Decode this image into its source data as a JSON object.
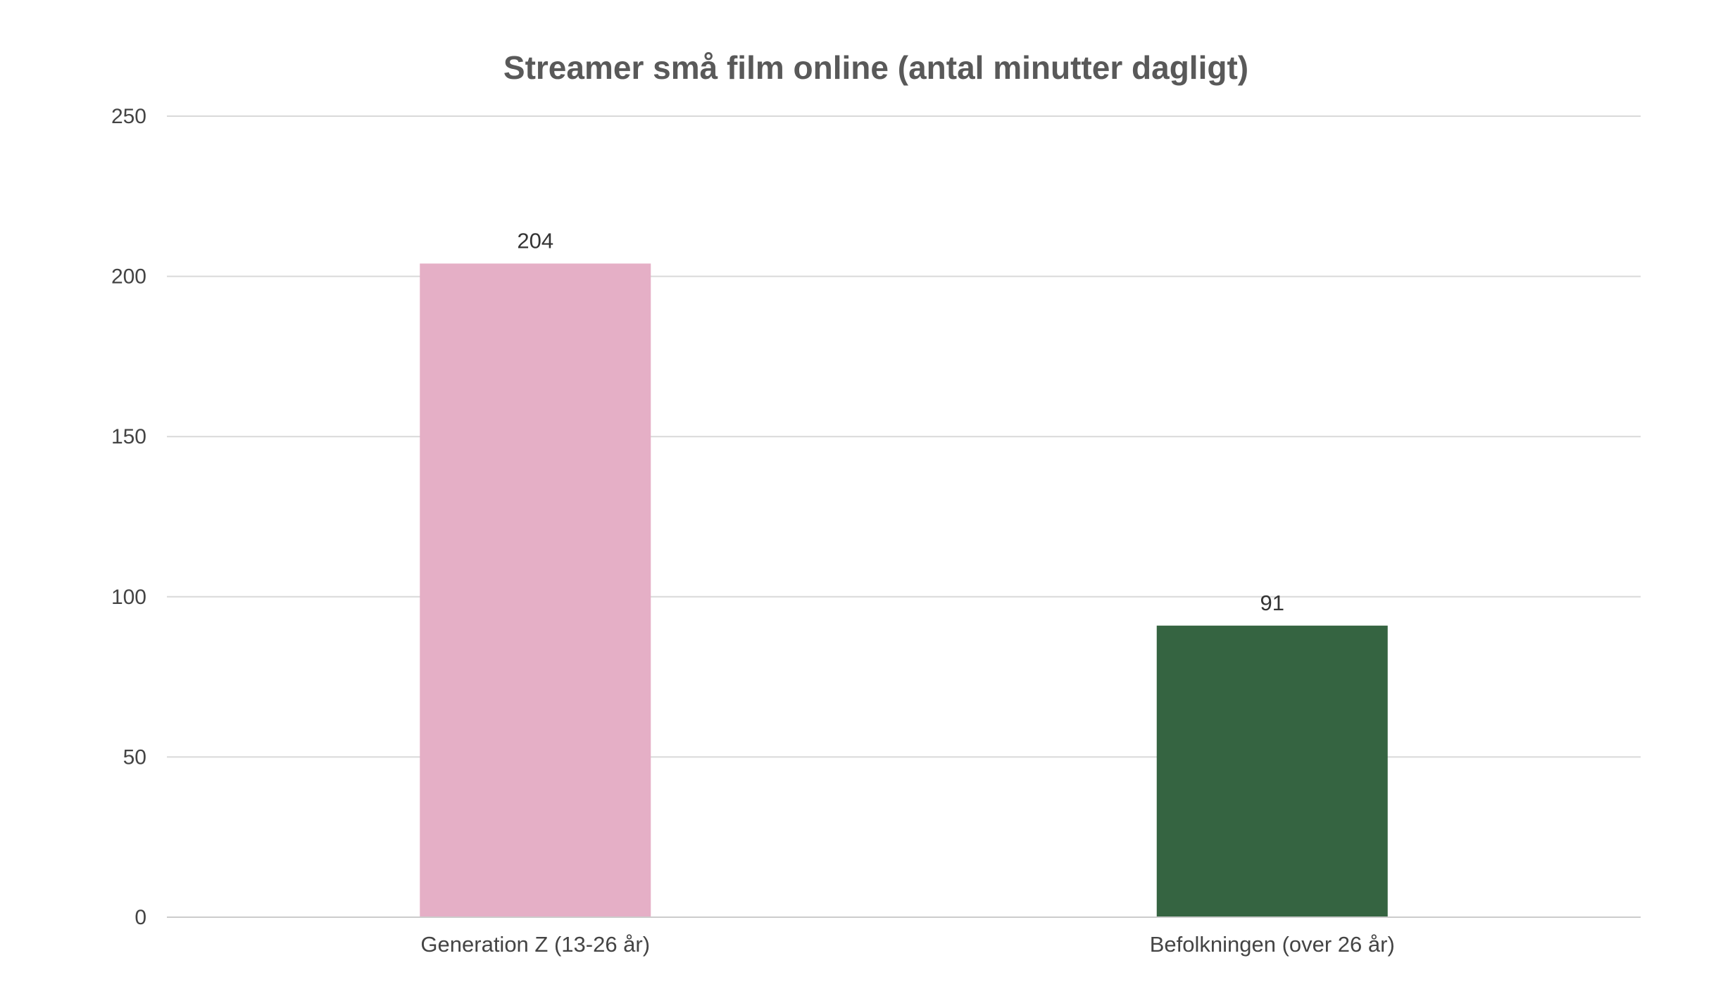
{
  "chart_data": {
    "type": "bar",
    "title": "Streamer små film online (antal minutter dagligt)",
    "xlabel": "",
    "ylabel": "",
    "categories": [
      "Generation Z (13-26 år)",
      "Befolkningen (over 26 år)"
    ],
    "values": [
      204,
      91
    ],
    "data_labels": [
      "204",
      "91"
    ],
    "colors": [
      "#e5afc6",
      "#356441"
    ],
    "ylim": [
      0,
      250
    ],
    "yticks": [
      0,
      50,
      100,
      150,
      200,
      250
    ],
    "ytick_labels": [
      "0",
      "50",
      "100",
      "150",
      "200",
      "250"
    ],
    "grid": true,
    "legend": "none"
  }
}
